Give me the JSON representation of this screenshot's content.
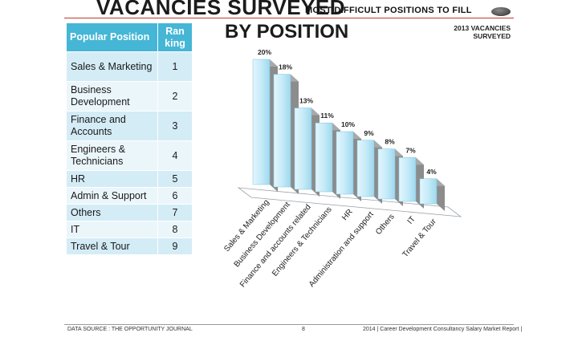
{
  "header": {
    "title_line1": "VACANCIES SURVEYED",
    "title_line2": "BY POSITION",
    "subtitle": "MOST DIFFICULT POSITIONS TO FILL",
    "survey_label": "2013 VACANCIES SURVEYED"
  },
  "table": {
    "col_position": "Popular Position",
    "col_ranking": "Ran king",
    "rows": [
      {
        "position": "Sales & Marketing",
        "rank": "1"
      },
      {
        "position": "Business Development",
        "rank": "2"
      },
      {
        "position": "Finance and Accounts",
        "rank": "3"
      },
      {
        "position": "Engineers & Technicians",
        "rank": "4"
      },
      {
        "position": "HR",
        "rank": "5"
      },
      {
        "position": "Admin & Support",
        "rank": "6"
      },
      {
        "position": "Others",
        "rank": "7"
      },
      {
        "position": "IT",
        "rank": "8"
      },
      {
        "position": "Travel & Tour",
        "rank": "9"
      }
    ]
  },
  "chart_data": {
    "type": "bar",
    "style": "3d",
    "categories": [
      "Sales & Marketing",
      "Business Development",
      "Finance and accounts related",
      "Engineers & Technicians",
      "HR",
      "Administration and support",
      "Others",
      "IT",
      "Travel & Tour"
    ],
    "values": [
      20,
      18,
      13,
      11,
      10,
      9,
      8,
      7,
      4
    ],
    "value_labels": [
      "20%",
      "18%",
      "13%",
      "11%",
      "10%",
      "9%",
      "8%",
      "7%",
      "4%"
    ],
    "value_unit": "%",
    "grid": false,
    "legend": "none",
    "bar_color": "#c6ebf8",
    "side_color": "#8c8c8c"
  },
  "footer": {
    "source": "DATA SOURCE : THE OPPORTUNITY JOURNAL",
    "page": "8",
    "report": "2014 | Career Development Consultancy Salary Market Report |"
  }
}
